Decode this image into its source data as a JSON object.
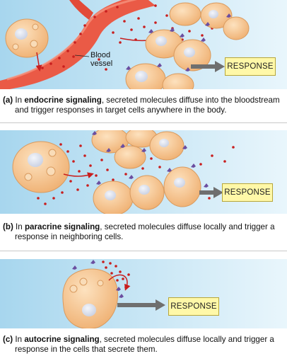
{
  "panels": [
    {
      "id": "a",
      "letter": "(a)",
      "intro": "In",
      "term": "endocrine signaling",
      "text": ", secreted molecules diffuse into the bloodstream and trigger responses in target cells anywhere in the body.",
      "response_label": "RESPONSE",
      "vessel_label_line1": "Blood",
      "vessel_label_line2": "vessel"
    },
    {
      "id": "b",
      "letter": "(b)",
      "intro": "In",
      "term": "paracrine signaling",
      "text": ", secreted molecules diffuse locally and trigger a response in neighboring cells.",
      "response_label": "RESPONSE"
    },
    {
      "id": "c",
      "letter": "(c)",
      "intro": "In",
      "term": "autocrine signaling",
      "text": ", secreted molecules diffuse locally and trigger a response in the cells that secrete them.",
      "response_label": "RESPONSE"
    }
  ],
  "colors": {
    "background_gradient_start": "#a7d6ee",
    "background_gradient_end": "#e9f6fc",
    "cell_fill": "#f6c691",
    "cell_edge": "#d99a5e",
    "nucleus": "#dde3ef",
    "vessel": "#ea5a46",
    "signal_molecule": "#c81e1e",
    "receptor": "#6b4ea0",
    "response_box": "#fff8a8",
    "arrow": "#6f6f6f"
  }
}
